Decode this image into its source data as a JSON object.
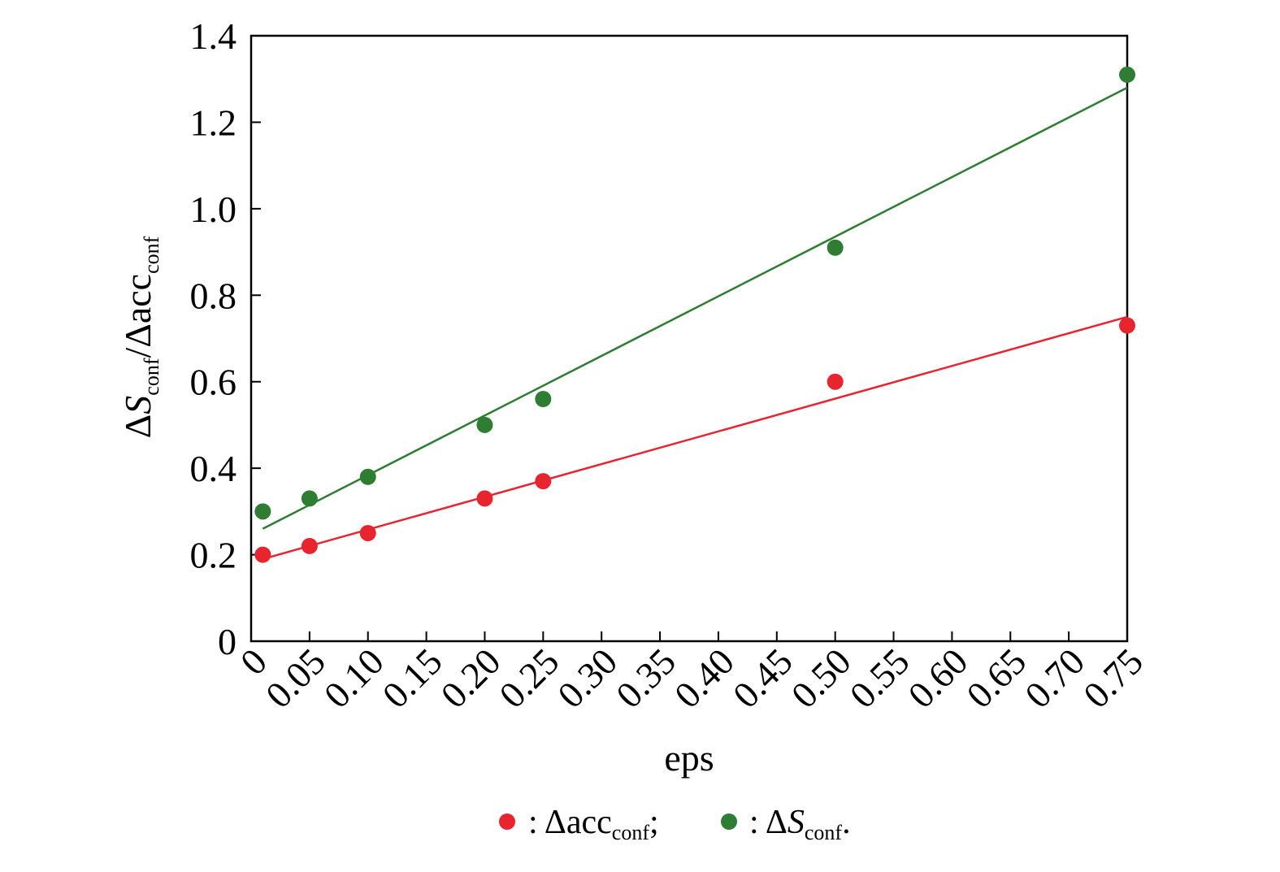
{
  "chart_data": {
    "type": "scatter",
    "xlabel": "eps",
    "ylabel": {
      "delta": "Δ",
      "s_main": "S",
      "s_sub": "conf",
      "slash": "/Δacc",
      "acc_sub": "conf"
    },
    "xlim": [
      0,
      0.75
    ],
    "ylim": [
      0,
      1.4
    ],
    "x_ticks": [
      "0",
      "0.05",
      "0.10",
      "0.15",
      "0.20",
      "0.25",
      "0.30",
      "0.35",
      "0.40",
      "0.45",
      "0.50",
      "0.55",
      "0.60",
      "0.65",
      "0.70",
      "0.75"
    ],
    "y_ticks": [
      "0",
      "0.2",
      "0.4",
      "0.6",
      "0.8",
      "1.0",
      "1.2",
      "1.4"
    ],
    "grid": false,
    "legend_position": "bottom",
    "series": [
      {
        "name": "Δacc_conf",
        "color": "#e8242f",
        "x": [
          0.01,
          0.05,
          0.1,
          0.2,
          0.25,
          0.5,
          0.75
        ],
        "y": [
          0.2,
          0.22,
          0.25,
          0.33,
          0.37,
          0.6,
          0.73
        ],
        "fit": {
          "x": [
            0.01,
            0.75
          ],
          "y": [
            0.19,
            0.75
          ]
        }
      },
      {
        "name": "ΔS_conf",
        "color": "#2e7d32",
        "x": [
          0.01,
          0.05,
          0.1,
          0.2,
          0.25,
          0.5,
          0.75
        ],
        "y": [
          0.3,
          0.33,
          0.38,
          0.5,
          0.56,
          0.91,
          1.31
        ],
        "fit": {
          "x": [
            0.01,
            0.75
          ],
          "y": [
            0.26,
            1.28
          ]
        }
      }
    ]
  },
  "legend": {
    "item1": {
      "sep": ": ",
      "main": "Δacc",
      "sub": "conf",
      "end": ";"
    },
    "item2": {
      "sep": ": ",
      "delta": "Δ",
      "main": "S",
      "sub": "conf",
      "end": "."
    }
  }
}
